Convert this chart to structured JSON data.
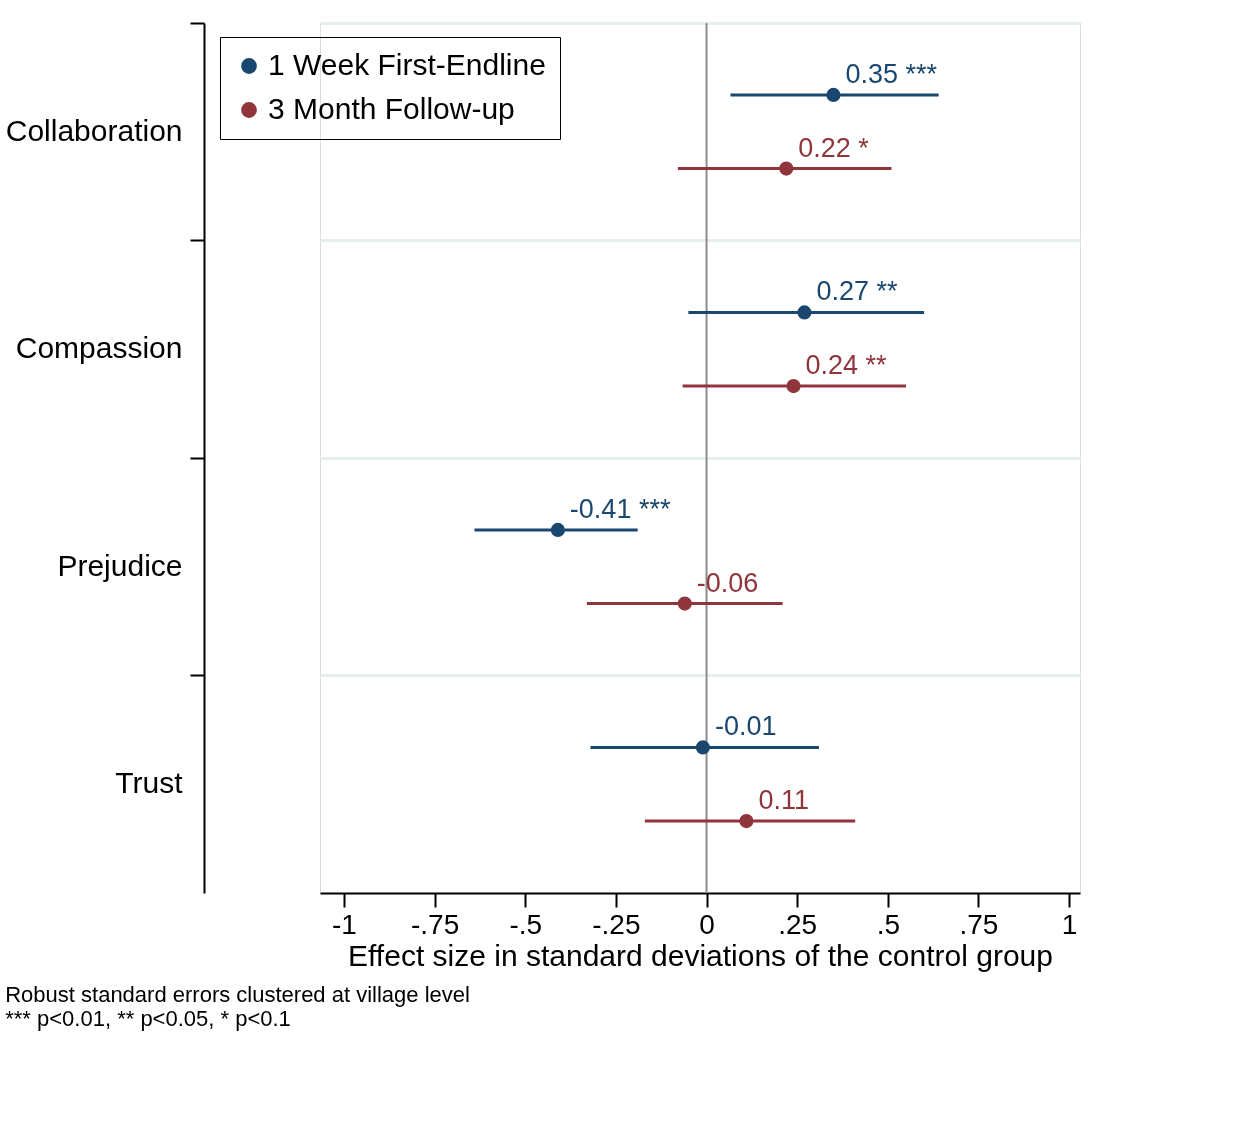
{
  "chart_data": {
    "type": "scatter",
    "orientation": "horizontal",
    "categories": [
      "Collaboration",
      "Compassion",
      "Prejudice",
      "Trust"
    ],
    "series": [
      {
        "name": "1 Week First-Endline",
        "color": "#1a476f",
        "values": [
          0.35,
          0.27,
          -0.41,
          -0.01
        ],
        "errors": [
          [
            0.066,
            0.64
          ],
          [
            -0.05,
            0.6
          ],
          [
            -0.64,
            -0.19
          ],
          [
            -0.32,
            0.31
          ]
        ],
        "value_labels": [
          "0.35 ***",
          "0.27 **",
          "-0.41 ***",
          "-0.01"
        ]
      },
      {
        "name": "3 Month Follow-up",
        "color": "#90353b",
        "values": [
          0.22,
          0.24,
          -0.06,
          0.11
        ],
        "errors": [
          [
            -0.079,
            0.51
          ],
          [
            -0.066,
            0.55
          ],
          [
            -0.33,
            0.21
          ],
          [
            -0.17,
            0.41
          ]
        ],
        "value_labels": [
          "0.22 *",
          "0.24 **",
          "-0.06",
          "0.11"
        ]
      }
    ],
    "xlabel": "Effect size in standard deviations of the control group",
    "xlim": [
      -1.066,
      1.03
    ],
    "xticks": [
      {
        "value": -1,
        "label": "-1"
      },
      {
        "value": -0.75,
        "label": "-.75"
      },
      {
        "value": -0.5,
        "label": "-.5"
      },
      {
        "value": -0.25,
        "label": "-.25"
      },
      0,
      {
        "value": 0.25,
        "label": ".25"
      },
      {
        "value": 0.5,
        "label": ".5"
      },
      {
        "value": 0.75,
        "label": ".75"
      },
      1
    ],
    "ref_lines": [
      {
        "axis": "x",
        "value": 0,
        "label": null,
        "color": "#8c8c8c"
      }
    ],
    "grid": "y",
    "legend": "top left",
    "marker": "circle",
    "annotations": [
      "Robust standard errors clustered at village level",
      " *** p<0.01, ** p<0.05, * p<0.1"
    ]
  }
}
